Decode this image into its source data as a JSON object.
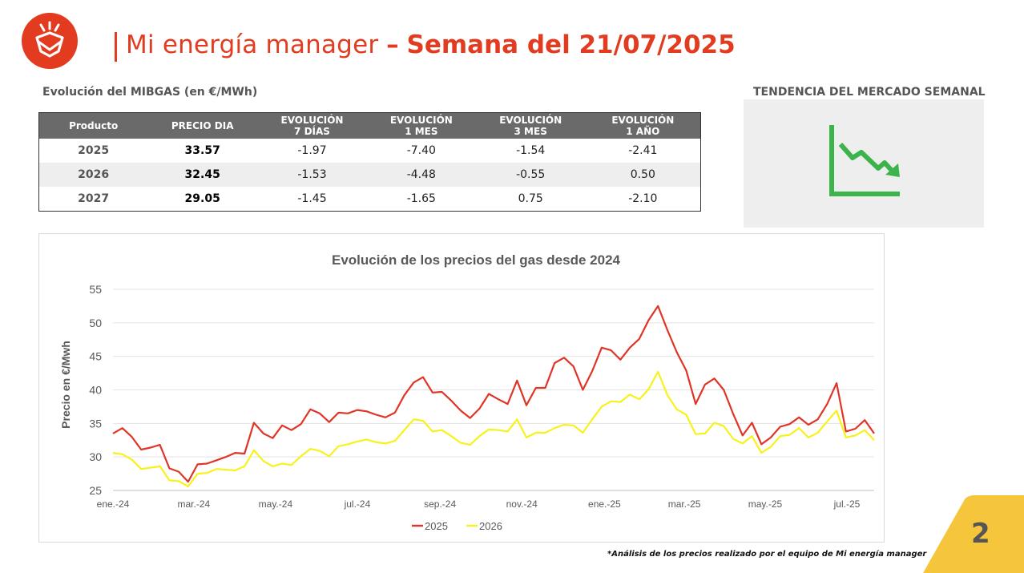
{
  "header": {
    "title_light": "Mi energía manager",
    "title_dash": "–",
    "title_bold": "Semana del 21/07/2025"
  },
  "table": {
    "title": "Evolución del MIBGAS (en €/MWh)",
    "headers": [
      [
        "Producto"
      ],
      [
        "PRECIO DIA"
      ],
      [
        "EVOLUCIÓN",
        "7 DÍAS"
      ],
      [
        "EVOLUCIÓN",
        "1 MES"
      ],
      [
        "EVOLUCIÓN",
        "3 MES"
      ],
      [
        "EVOLUCIÓN",
        "1 AÑO"
      ]
    ],
    "rows": [
      [
        "2025",
        "33.57",
        "-1.97",
        "-7.40",
        "-1.54",
        "-2.41"
      ],
      [
        "2026",
        "32.45",
        "-1.53",
        "-4.48",
        "-0.55",
        "0.50"
      ],
      [
        "2027",
        "29.05",
        "-1.45",
        "-1.65",
        "0.75",
        "-2.10"
      ]
    ]
  },
  "trend": {
    "title": "TENDENCIA DEL MERCADO SEMANAL",
    "icon": "downtrend-chart-icon",
    "color": "#3cb44b"
  },
  "chart_data": {
    "type": "line",
    "title": "Evolución de los precios del gas desde 2024",
    "ylabel": "Precio en €/Mwh",
    "xlabel": "",
    "ylim": [
      25,
      55
    ],
    "yticks": [
      25,
      30,
      35,
      40,
      45,
      50,
      55
    ],
    "xlim": [
      0,
      81
    ],
    "xtick_labels": [
      {
        "label": "ene.-24",
        "x": 0
      },
      {
        "label": "mar.-24",
        "x": 8.6
      },
      {
        "label": "may.-24",
        "x": 17.3
      },
      {
        "label": "jul.-24",
        "x": 26
      },
      {
        "label": "sep.-24",
        "x": 34.8
      },
      {
        "label": "nov.-24",
        "x": 43.5
      },
      {
        "label": "ene.-25",
        "x": 52.3
      },
      {
        "label": "mar.-25",
        "x": 60.8
      },
      {
        "label": "may.-25",
        "x": 69.4
      },
      {
        "label": "jul.-25",
        "x": 78.1
      }
    ],
    "grid": true,
    "legend_position": "bottom",
    "series": [
      {
        "name": "2025",
        "color": "#e03427",
        "values": [
          33.5,
          34.3,
          33.0,
          31.1,
          31.4,
          31.8,
          28.3,
          27.8,
          26.3,
          28.9,
          29.0,
          29.5,
          30.0,
          30.6,
          30.5,
          35.1,
          33.5,
          32.8,
          34.7,
          34.0,
          34.9,
          37.1,
          36.5,
          35.2,
          36.6,
          36.5,
          37.0,
          36.8,
          36.3,
          35.9,
          36.6,
          39.2,
          41.1,
          41.9,
          39.6,
          39.7,
          38.4,
          36.9,
          35.8,
          37.2,
          39.4,
          38.6,
          37.9,
          41.4,
          37.7,
          40.3,
          40.3,
          44.0,
          44.8,
          43.5,
          40.0,
          42.8,
          46.3,
          45.9,
          44.5,
          46.3,
          47.6,
          50.4,
          52.5,
          48.9,
          45.6,
          42.9,
          37.9,
          40.8,
          41.7,
          40.0,
          36.4,
          33.2,
          35.1,
          31.9,
          32.9,
          34.5,
          34.9,
          35.9,
          34.8,
          35.6,
          37.9,
          41.0,
          33.8,
          34.2,
          35.5,
          33.5
        ]
      },
      {
        "name": "2026",
        "color": "#f7f21c",
        "values": [
          30.6,
          30.4,
          29.6,
          28.2,
          28.4,
          28.6,
          26.5,
          26.4,
          25.6,
          27.5,
          27.6,
          28.2,
          28.1,
          28.0,
          28.6,
          31.0,
          29.4,
          28.6,
          29.0,
          28.8,
          30.1,
          31.2,
          30.9,
          30.1,
          31.6,
          31.9,
          32.3,
          32.6,
          32.2,
          32.0,
          32.4,
          34.0,
          35.6,
          35.4,
          33.8,
          34.0,
          33.1,
          32.1,
          31.8,
          33.1,
          34.1,
          34.0,
          33.8,
          35.6,
          32.9,
          33.6,
          33.6,
          34.3,
          34.8,
          34.7,
          33.6,
          35.6,
          37.5,
          38.3,
          38.2,
          39.3,
          38.6,
          40.1,
          42.7,
          39.2,
          37.1,
          36.3,
          33.4,
          33.5,
          35.1,
          34.6,
          32.7,
          32.0,
          33.1,
          30.6,
          31.5,
          33.1,
          33.3,
          34.3,
          32.9,
          33.6,
          35.3,
          36.9,
          32.9,
          33.2,
          34.0,
          32.5
        ]
      }
    ]
  },
  "footer": {
    "note": "*Análisis de los precios realizado por el equipo de Mi energía manager",
    "page_number": "2",
    "corner_color": "#f5c53b"
  }
}
